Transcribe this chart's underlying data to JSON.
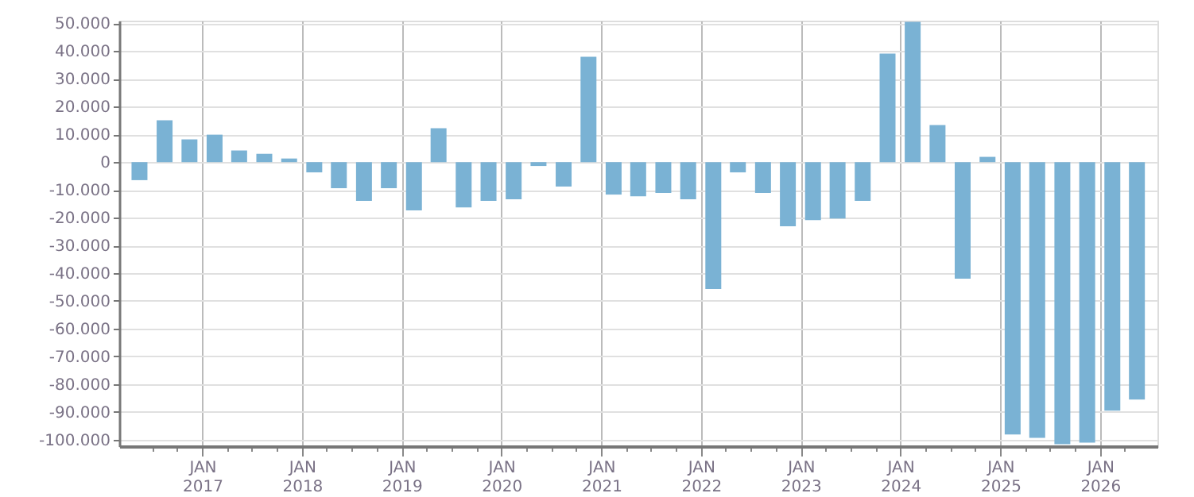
{
  "chart_data": {
    "type": "bar",
    "x": [
      "2016-05-16",
      "2016-08-16",
      "2016-11-15",
      "2017-02-15",
      "2017-05-16",
      "2017-08-16",
      "2017-11-15",
      "2018-02-15",
      "2018-05-16",
      "2018-08-16",
      "2018-11-15",
      "2019-02-15",
      "2019-05-16",
      "2019-08-16",
      "2019-11-15",
      "2020-02-15",
      "2020-05-16",
      "2020-08-16",
      "2020-11-15",
      "2021-02-15",
      "2021-05-16",
      "2021-08-16",
      "2021-11-15",
      "2022-02-15",
      "2022-05-16",
      "2022-08-16",
      "2022-11-15",
      "2023-02-15",
      "2023-05-16",
      "2023-08-16",
      "2023-11-15",
      "2024-02-15",
      "2024-05-16",
      "2024-08-16",
      "2024-11-15",
      "2025-02-15",
      "2025-05-16",
      "2025-08-16",
      "2025-11-15",
      "2026-02-15",
      "2026-05-16"
    ],
    "values": [
      -6500,
      15100,
      8200,
      9900,
      4200,
      3000,
      1300,
      -3700,
      -9400,
      -14000,
      -9400,
      -17400,
      12200,
      -16300,
      -14000,
      -13400,
      -1400,
      -8800,
      38000,
      -11700,
      -12300,
      -11100,
      -13400,
      -45700,
      -3700,
      -11100,
      -23100,
      -20900,
      -20300,
      -14000,
      39100,
      50600,
      13400,
      -42000,
      1900,
      -98200,
      -99400,
      -101700,
      -101100,
      -89600,
      -85600
    ],
    "color": "#7ab2d4",
    "xlim": [
      "2016-04-01",
      "2026-07-01"
    ],
    "xticks": [
      {
        "value": "2016-07-01",
        "label": null
      },
      {
        "value": "2016-10-01",
        "label": null
      },
      {
        "value": "2017-01-01",
        "label": "JAN\n2017"
      },
      {
        "value": "2017-04-01",
        "label": null
      },
      {
        "value": "2017-07-01",
        "label": null
      },
      {
        "value": "2017-10-01",
        "label": null
      },
      {
        "value": "2018-01-01",
        "label": "JAN\n2018"
      },
      {
        "value": "2018-04-01",
        "label": null
      },
      {
        "value": "2018-07-01",
        "label": null
      },
      {
        "value": "2018-10-01",
        "label": null
      },
      {
        "value": "2019-01-01",
        "label": "JAN\n2019"
      },
      {
        "value": "2019-04-01",
        "label": null
      },
      {
        "value": "2019-07-01",
        "label": null
      },
      {
        "value": "2019-10-01",
        "label": null
      },
      {
        "value": "2020-01-01",
        "label": "JAN\n2020"
      },
      {
        "value": "2020-04-01",
        "label": null
      },
      {
        "value": "2020-07-01",
        "label": null
      },
      {
        "value": "2020-10-01",
        "label": null
      },
      {
        "value": "2021-01-01",
        "label": "JAN\n2021"
      },
      {
        "value": "2021-04-01",
        "label": null
      },
      {
        "value": "2021-07-01",
        "label": null
      },
      {
        "value": "2021-10-01",
        "label": null
      },
      {
        "value": "2022-01-01",
        "label": "JAN\n2022"
      },
      {
        "value": "2022-04-01",
        "label": null
      },
      {
        "value": "2022-07-01",
        "label": null
      },
      {
        "value": "2022-10-01",
        "label": null
      },
      {
        "value": "2023-01-01",
        "label": "JAN\n2023"
      },
      {
        "value": "2023-04-01",
        "label": null
      },
      {
        "value": "2023-07-01",
        "label": null
      },
      {
        "value": "2023-10-01",
        "label": null
      },
      {
        "value": "2024-01-01",
        "label": "JAN\n2024"
      },
      {
        "value": "2024-04-01",
        "label": null
      },
      {
        "value": "2024-07-01",
        "label": null
      },
      {
        "value": "2024-10-01",
        "label": null
      },
      {
        "value": "2025-01-01",
        "label": "JAN\n2025"
      },
      {
        "value": "2025-04-01",
        "label": null
      },
      {
        "value": "2025-07-01",
        "label": null
      },
      {
        "value": "2025-10-01",
        "label": null
      },
      {
        "value": "2026-01-01",
        "label": "JAN\n2026"
      },
      {
        "value": "2026-04-01",
        "label": null
      }
    ],
    "ylim": [
      -102400,
      51000
    ],
    "yticks": [
      {
        "value": -100000,
        "label": "-100.000"
      },
      {
        "value": -90000,
        "label": "-90.000"
      },
      {
        "value": -80000,
        "label": "-80.000"
      },
      {
        "value": -70000,
        "label": "-70.000"
      },
      {
        "value": -60000,
        "label": "-60.000"
      },
      {
        "value": -50000,
        "label": "-50.000"
      },
      {
        "value": -40000,
        "label": "-40.000"
      },
      {
        "value": -30000,
        "label": "-30.000"
      },
      {
        "value": -20000,
        "label": "-20.000"
      },
      {
        "value": -10000,
        "label": "-10.000"
      },
      {
        "value": 0,
        "label": "0"
      },
      {
        "value": 10000,
        "label": "10.000"
      },
      {
        "value": 20000,
        "label": "20.000"
      },
      {
        "value": 30000,
        "label": "30.000"
      },
      {
        "value": 40000,
        "label": "40.000"
      },
      {
        "value": 50000,
        "label": "50.000"
      }
    ],
    "grid": true
  }
}
